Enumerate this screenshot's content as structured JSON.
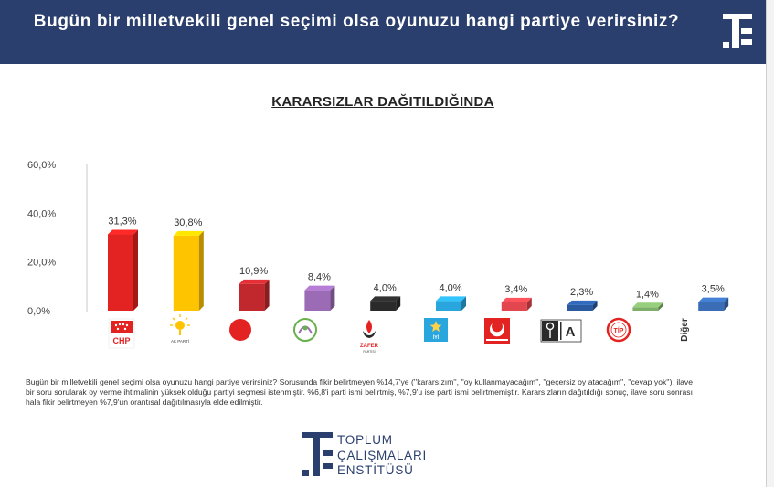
{
  "header": {
    "title": "Bugün bir milletvekili genel seçimi olsa oyunuzu hangi partiye verirsiniz?"
  },
  "subtitle": "KARARSIZLAR DAĞITILDIĞINDA",
  "chart_data": {
    "type": "bar",
    "title": "KARARSIZLAR DAĞITILDIĞINDA",
    "xlabel": "",
    "ylabel": "",
    "ylim": [
      0,
      60
    ],
    "yticks": [
      "0,0%",
      "20,0%",
      "40,0%",
      "60,0%"
    ],
    "categories": [
      "CHP",
      "AK PARTİ",
      "MHP",
      "HÜDA PAR",
      "ZAFER",
      "İYİ PARTİ",
      "YENİDEN REFAH",
      "ANAHTAR PARTİ",
      "TİP",
      "Diğer"
    ],
    "values": [
      31.3,
      30.8,
      10.9,
      8.4,
      4.0,
      4.0,
      3.4,
      2.3,
      1.4,
      3.5
    ],
    "value_labels": [
      "31,3%",
      "30,8%",
      "10,9%",
      "8,4%",
      "4,0%",
      "4,0%",
      "3,4%",
      "2,3%",
      "1,4%",
      "3,5%"
    ],
    "colors": [
      "#e32321",
      "#ffc400",
      "#c0282d",
      "#9b6bb6",
      "#2a2a2a",
      "#2aa6de",
      "#e2474f",
      "#2a5aa0",
      "#7fb069",
      "#3a6db5"
    ],
    "grid": false,
    "legend": "none"
  },
  "party_marks": {
    "chp": "CHP",
    "akp": "AK PARTİ",
    "zafer": "ZAFER",
    "zafer_sub": "PARTİSİ",
    "iyi": "İYİ",
    "anahtar": "A",
    "tip": "TİP",
    "diger": "Diğer"
  },
  "footnote": "Bugün bir milletvekili genel seçimi olsa oyunuzu hangi partiye verirsiniz? Sorusunda fikir belirtmeyen %14,7'ye (''kararsızım'', ''oy kullanmayacağım'', ''geçersiz oy atacağım'', ''cevap yok''), ilave bir soru sorularak oy verme ihtimalinin yüksek olduğu partiyi seçmesi istenmiştir. %6,8'i parti ismi belirtmiş, %7,9'u ise parti ismi belirtmemiştir. Kararsızların dağıtıldığı sonuç, ilave soru sonrası hala fikir belirtmeyen %7,9'un orantısal dağıtılmasıyla elde edilmiştir.",
  "brand": {
    "line1": "TOPLUM",
    "line2": "ÇALIŞMALARI",
    "line3": "ENSTİTÜSÜ",
    "navy": "#2b3f6e"
  }
}
